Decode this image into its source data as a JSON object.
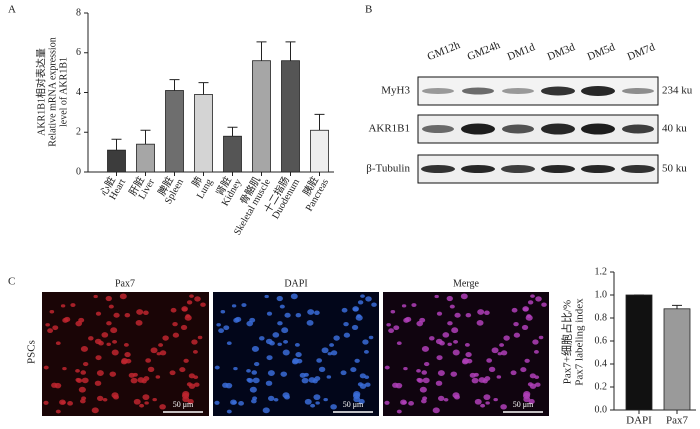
{
  "panel_labels": [
    "A",
    "B",
    "C"
  ],
  "chart_data": [
    {
      "type": "bar",
      "ylabel": [
        "AKR1B1相对表达量",
        "Relative mRNA expression",
        "level of AKR1B1"
      ],
      "categories": [
        "Heart",
        "Liver",
        "Spleen",
        "Lung",
        "Kidney",
        "Skeletal muscle",
        "Duodenum",
        "Pancreas"
      ],
      "categories_cn": [
        "心脏",
        "肝脏",
        "脾脏",
        "肺",
        "肾脏",
        "骨骼肌",
        "十二指肠",
        "胰脏"
      ],
      "values": [
        1.1,
        1.4,
        4.1,
        3.9,
        1.8,
        5.6,
        5.6,
        2.1
      ],
      "errors": [
        0.55,
        0.7,
        0.55,
        0.6,
        0.45,
        0.95,
        0.95,
        0.8
      ],
      "colors": [
        "#3c3c3c",
        "#a6a6a6",
        "#6e6e6e",
        "#d4d4d4",
        "#555555",
        "#a6a6a6",
        "#555555",
        "#eeeeee"
      ],
      "ylim": [
        0,
        8
      ],
      "yticks": [
        0,
        2,
        4,
        6,
        8
      ]
    },
    {
      "type": "bar",
      "ylabel": [
        "Pax7+细胞占比/%",
        "Pax7 labeling index"
      ],
      "categories": [
        "DAPI",
        "Pax7"
      ],
      "values": [
        1.0,
        0.88
      ],
      "errors": [
        0,
        0.03
      ],
      "colors": [
        "#111111",
        "#9a9a9a"
      ],
      "ylim": [
        0,
        1.2
      ],
      "yticks": [
        {
          "value": 0,
          "label": "0.0"
        },
        0.2,
        0.4,
        0.6,
        0.8,
        {
          "value": 1,
          "label": "1.0"
        },
        1.2
      ]
    }
  ],
  "western_blot": {
    "lanes": [
      "GM12h",
      "GM24h",
      "DM1d",
      "DM3d",
      "DM5d",
      "DM7d"
    ],
    "rows": [
      {
        "protein": "MyH3",
        "size": "234 ku"
      },
      {
        "protein": "AKR1B1",
        "size": "40 ku"
      },
      {
        "protein": "β-Tubulin",
        "size": "50 ku"
      }
    ]
  },
  "microscopy": {
    "row_label": "PSCs",
    "channels": [
      "Pax7",
      "DAPI",
      "Merge"
    ],
    "scale_bar": "50 μm"
  }
}
